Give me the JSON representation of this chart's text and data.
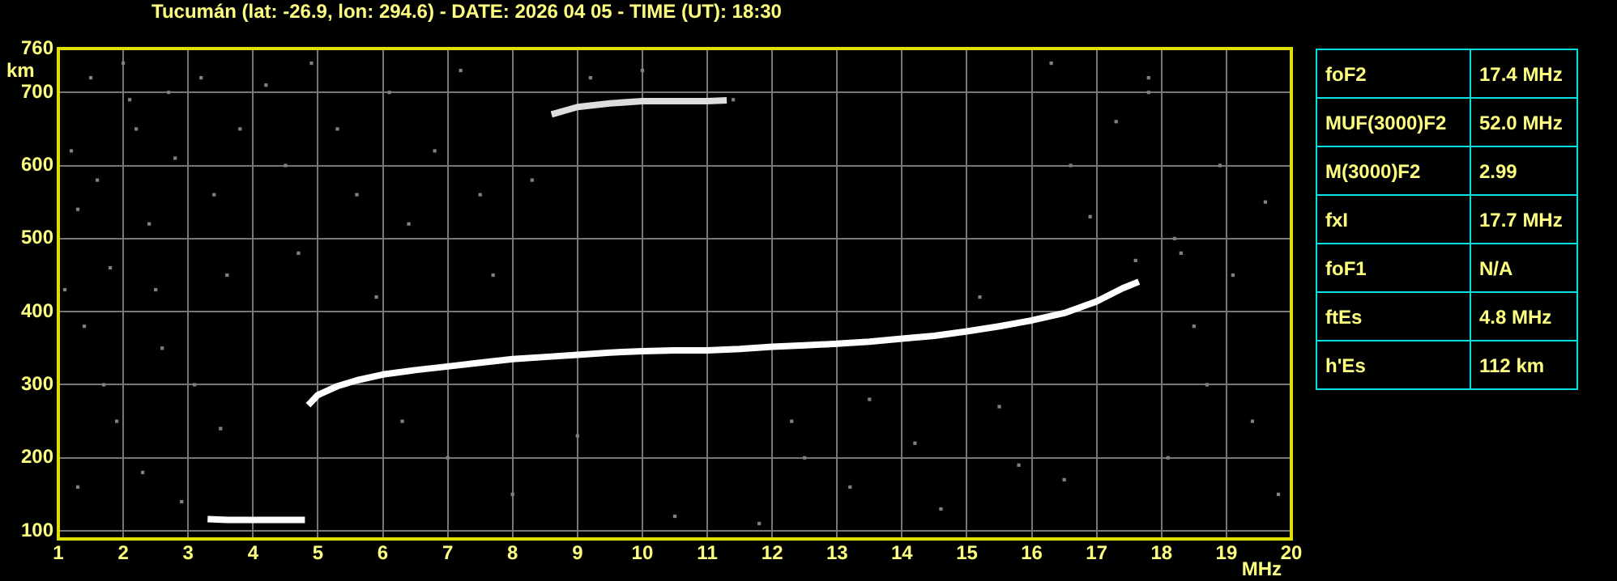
{
  "chart_data": [
    {
      "type": "scatter",
      "title": "Tucumán (lat: -26.9, lon: 294.6) - DATE: 2026 04 05 - TIME (UT): 18:30",
      "xlabel": "MHz",
      "ylabel": "km",
      "xlim": [
        1,
        20
      ],
      "xticks": [
        1,
        2,
        3,
        4,
        5,
        6,
        7,
        8,
        9,
        10,
        11,
        12,
        13,
        14,
        15,
        16,
        17,
        18,
        19,
        20
      ],
      "ylim": [
        89,
        760
      ],
      "yticks": [
        100,
        200,
        300,
        400,
        500,
        600,
        700,
        760
      ],
      "grid": true,
      "legend": false,
      "series": [
        {
          "type": "line",
          "marker": "none",
          "color": "#ffffff",
          "x": [
            4.85,
            5.0,
            5.3,
            5.6,
            6.0,
            6.5,
            7.0,
            7.5,
            8.0,
            8.5,
            9.0,
            9.5,
            10.0,
            10.5,
            11.0,
            11.5,
            12.0,
            12.5,
            13.0,
            13.5,
            14.0,
            14.5,
            15.0,
            15.5,
            16.0,
            16.5,
            17.0,
            17.4,
            17.65
          ],
          "values": [
            272,
            286,
            298,
            306,
            314,
            320,
            325,
            330,
            335,
            338,
            341,
            344,
            346,
            347,
            347,
            349,
            352,
            354,
            356,
            359,
            363,
            367,
            373,
            380,
            388,
            398,
            414,
            432,
            441
          ]
        },
        {
          "type": "line",
          "marker": "none",
          "color": "#ffffff",
          "x": [
            3.3,
            3.6,
            4.0,
            4.4,
            4.8
          ],
          "values": [
            116,
            115,
            115,
            115,
            115
          ]
        },
        {
          "type": "line",
          "marker": "none",
          "color": "#dddddd",
          "x": [
            8.6,
            9.0,
            9.5,
            10.0,
            10.5,
            11.0,
            11.3
          ],
          "values": [
            670,
            680,
            685,
            688,
            688,
            688,
            689
          ]
        },
        {
          "type": "scatter",
          "marker": "square",
          "color": "#808080",
          "x": [
            1.2,
            1.3,
            1.5,
            1.6,
            1.8,
            2.0,
            2.1,
            2.2,
            2.4,
            2.5,
            2.7,
            2.8,
            1.1,
            1.4,
            1.7,
            1.9,
            2.3,
            2.6,
            1.3,
            2.9,
            3.2,
            3.4,
            3.6,
            3.8,
            3.1,
            3.5,
            4.2,
            4.5,
            4.7,
            4.9,
            5.3,
            5.6,
            5.9,
            6.1,
            6.4,
            6.8,
            7.2,
            7.5,
            7.7,
            8.3,
            6.3,
            7.0,
            8.0,
            9.0,
            10.5,
            12.3,
            12.5,
            13.2,
            13.5,
            14.2,
            14.6,
            15.5,
            15.8,
            16.3,
            16.6,
            16.9,
            17.3,
            17.6,
            17.8,
            17.8,
            18.2,
            18.3,
            18.5,
            18.7,
            18.9,
            19.1,
            19.4,
            19.6,
            19.8,
            18.1,
            16.5,
            15.2,
            11.8,
            10.0,
            9.2,
            11.4
          ],
          "values": [
            620,
            540,
            720,
            580,
            460,
            740,
            690,
            650,
            520,
            430,
            700,
            610,
            430,
            380,
            300,
            250,
            180,
            350,
            160,
            140,
            720,
            560,
            450,
            650,
            300,
            240,
            710,
            600,
            480,
            740,
            650,
            560,
            420,
            700,
            520,
            620,
            730,
            560,
            450,
            580,
            250,
            200,
            150,
            230,
            120,
            250,
            200,
            160,
            280,
            220,
            130,
            270,
            190,
            740,
            600,
            530,
            660,
            470,
            720,
            700,
            500,
            480,
            380,
            300,
            600,
            450,
            250,
            550,
            150,
            200,
            170,
            420,
            110,
            730,
            720,
            690
          ]
        }
      ]
    },
    {
      "type": "other",
      "annotations": [
        "foF2",
        "17.4 MHz",
        "MUF(3000)F2",
        "52.0 MHz",
        "M(3000)F2",
        "2.99",
        "fxI",
        "17.7 MHz",
        "foF1",
        "N/A",
        "ftEs",
        "4.8 MHz",
        "h'Es",
        "112 km"
      ]
    }
  ]
}
